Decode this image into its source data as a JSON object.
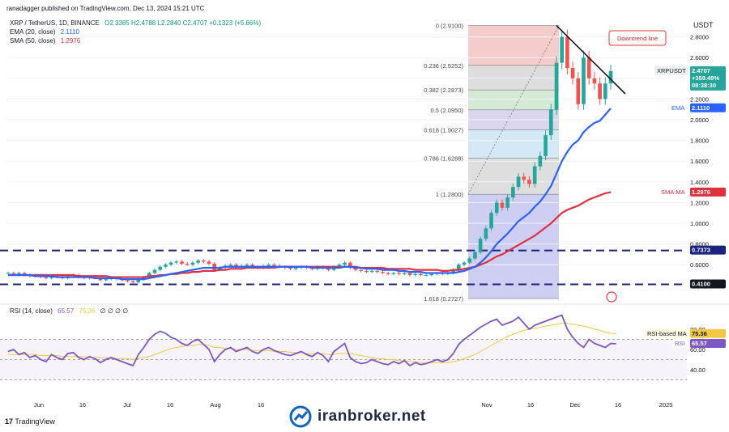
{
  "header": {
    "published": "ranadagger published on TradingView.com, Dec 13, 2024 15:21 UTC",
    "currency": "USDT"
  },
  "legend": {
    "symbol": "XRP / TetherUS, 1D, BINANCE",
    "ohlc": "O2.3385 H2.4788 L2.2840 C2.4707 +0.1323 (+5.66%)",
    "ema_label": "EMA (20, close)",
    "ema_value": "2.1110",
    "sma_label": "SMA (50, close)",
    "sma_value": "1.2976",
    "rsi_label": "RSI (14, close)",
    "rsi_value": "65.57",
    "rsi_ma_value": "75.36",
    "rsi_placeholders": "∅ ∅ ∅ ∅"
  },
  "price_badges": {
    "symbol": "XRPUSDT",
    "last": "2.4707",
    "change": "+359.49%",
    "countdown": "08:38:30",
    "ema_tag": "EMA",
    "ema": "2.1110",
    "sma_tag": "SMA:MA",
    "sma": "1.2976",
    "support_high": "0.7373",
    "support_low": "0.4100",
    "rsi_ma_tag": "RSI-based MA",
    "rsi_ma": "75.36",
    "rsi_tag": "RSI",
    "rsi": "65.57"
  },
  "annotation": {
    "trendline": "Downtrend line"
  },
  "watermark": "iranbroker.net",
  "footer_logo": "TradingView",
  "colors": {
    "up": "#26a69a",
    "down": "#ef5350",
    "ema": "#2962ff",
    "sma": "#e03040",
    "rsi": "#7e57c2",
    "rsi_ma": "#f2c744",
    "support": "#1a237e"
  },
  "chart_data": {
    "type": "candlestick",
    "title": "XRP / TetherUS, 1D, BINANCE",
    "x_ticks": [
      "Jun",
      "16",
      "Jul",
      "16",
      "Aug",
      "16",
      "Nov",
      "16",
      "Dec",
      "16",
      "2025"
    ],
    "y_ticks": [
      "2.8000",
      "2.6000",
      "2.4000",
      "2.2000",
      "2.0000",
      "1.8000",
      "1.6000",
      "1.4000",
      "1.2000",
      "1.0000",
      "0.8000",
      "0.6000"
    ],
    "y_tick_values": [
      2.8,
      2.6,
      2.4,
      2.2,
      2.0,
      1.8,
      1.6,
      1.4,
      1.2,
      1.0,
      0.8,
      0.6
    ],
    "price_range": [
      0.25,
      3.0
    ],
    "fibonacci": [
      {
        "label": "0 (2.9100)",
        "value": 2.91
      },
      {
        "label": "0.236 (2.5252)",
        "value": 2.5252
      },
      {
        "label": "0.382 (2.2873)",
        "value": 2.2873
      },
      {
        "label": "0.5 (2.0950)",
        "value": 2.095
      },
      {
        "label": "0.618 (1.9027)",
        "value": 1.9027
      },
      {
        "label": "0.786 (1.6288)",
        "value": 1.6288
      },
      {
        "label": "1 (1.2800)",
        "value": 1.28
      },
      {
        "label": "1.618 (0.2727)",
        "value": 0.2727
      }
    ],
    "support_lines": [
      0.7373,
      0.41
    ],
    "closes": [
      0.52,
      0.51,
      0.52,
      0.5,
      0.49,
      0.5,
      0.48,
      0.47,
      0.49,
      0.48,
      0.47,
      0.49,
      0.5,
      0.48,
      0.47,
      0.48,
      0.47,
      0.45,
      0.46,
      0.47,
      0.46,
      0.45,
      0.44,
      0.43,
      0.46,
      0.48,
      0.52,
      0.55,
      0.58,
      0.6,
      0.62,
      0.63,
      0.61,
      0.6,
      0.62,
      0.64,
      0.63,
      0.61,
      0.55,
      0.57,
      0.59,
      0.6,
      0.58,
      0.59,
      0.6,
      0.58,
      0.57,
      0.59,
      0.6,
      0.59,
      0.58,
      0.57,
      0.56,
      0.57,
      0.58,
      0.57,
      0.56,
      0.58,
      0.57,
      0.55,
      0.58,
      0.6,
      0.62,
      0.57,
      0.55,
      0.54,
      0.53,
      0.54,
      0.53,
      0.52,
      0.51,
      0.52,
      0.51,
      0.52,
      0.5,
      0.51,
      0.5,
      0.5,
      0.51,
      0.52,
      0.51,
      0.52,
      0.55,
      0.6,
      0.62,
      0.66,
      0.72,
      0.85,
      0.95,
      1.1,
      1.2,
      1.15,
      1.25,
      1.35,
      1.45,
      1.42,
      1.38,
      1.55,
      1.65,
      1.85,
      2.1,
      2.55,
      2.8,
      2.5,
      2.4,
      2.15,
      2.6,
      2.4,
      2.35,
      2.2,
      2.35,
      2.47
    ],
    "ema20": [
      0.5,
      0.5,
      0.5,
      0.5,
      0.5,
      0.49,
      0.49,
      0.49,
      0.49,
      0.48,
      0.48,
      0.48,
      0.48,
      0.48,
      0.48,
      0.48,
      0.47,
      0.47,
      0.47,
      0.47,
      0.47,
      0.46,
      0.46,
      0.46,
      0.46,
      0.46,
      0.47,
      0.48,
      0.49,
      0.5,
      0.51,
      0.52,
      0.53,
      0.54,
      0.55,
      0.56,
      0.57,
      0.57,
      0.57,
      0.57,
      0.58,
      0.58,
      0.58,
      0.58,
      0.58,
      0.58,
      0.58,
      0.58,
      0.58,
      0.58,
      0.58,
      0.58,
      0.58,
      0.58,
      0.58,
      0.58,
      0.57,
      0.57,
      0.57,
      0.57,
      0.57,
      0.57,
      0.58,
      0.58,
      0.57,
      0.57,
      0.56,
      0.56,
      0.56,
      0.55,
      0.55,
      0.55,
      0.54,
      0.54,
      0.53,
      0.53,
      0.53,
      0.52,
      0.52,
      0.52,
      0.52,
      0.52,
      0.52,
      0.53,
      0.54,
      0.56,
      0.58,
      0.62,
      0.67,
      0.73,
      0.8,
      0.85,
      0.9,
      0.96,
      1.02,
      1.06,
      1.1,
      1.16,
      1.21,
      1.28,
      1.36,
      1.48,
      1.6,
      1.69,
      1.76,
      1.8,
      1.88,
      1.93,
      1.97,
      1.99,
      2.05,
      2.11
    ],
    "sma50": [
      0.5,
      0.5,
      0.5,
      0.5,
      0.5,
      0.5,
      0.5,
      0.5,
      0.5,
      0.5,
      0.5,
      0.5,
      0.5,
      0.49,
      0.49,
      0.49,
      0.49,
      0.49,
      0.49,
      0.48,
      0.48,
      0.48,
      0.48,
      0.48,
      0.48,
      0.48,
      0.49,
      0.49,
      0.5,
      0.5,
      0.51,
      0.51,
      0.52,
      0.52,
      0.53,
      0.53,
      0.54,
      0.54,
      0.54,
      0.55,
      0.55,
      0.56,
      0.56,
      0.56,
      0.57,
      0.57,
      0.57,
      0.57,
      0.57,
      0.57,
      0.58,
      0.58,
      0.58,
      0.58,
      0.58,
      0.58,
      0.58,
      0.58,
      0.58,
      0.58,
      0.58,
      0.58,
      0.58,
      0.58,
      0.58,
      0.57,
      0.57,
      0.57,
      0.57,
      0.57,
      0.56,
      0.56,
      0.56,
      0.56,
      0.56,
      0.55,
      0.55,
      0.55,
      0.55,
      0.55,
      0.54,
      0.54,
      0.55,
      0.55,
      0.56,
      0.57,
      0.58,
      0.6,
      0.62,
      0.65,
      0.68,
      0.7,
      0.73,
      0.76,
      0.79,
      0.82,
      0.85,
      0.88,
      0.92,
      0.96,
      1.0,
      1.05,
      1.1,
      1.13,
      1.15,
      1.17,
      1.2,
      1.23,
      1.25,
      1.27,
      1.29,
      1.3
    ],
    "rsi": [
      58,
      60,
      55,
      57,
      52,
      54,
      50,
      48,
      55,
      52,
      50,
      56,
      57,
      52,
      50,
      53,
      51,
      47,
      50,
      52,
      50,
      48,
      46,
      44,
      55,
      62,
      70,
      75,
      78,
      76,
      72,
      70,
      66,
      64,
      68,
      70,
      65,
      60,
      48,
      55,
      60,
      62,
      58,
      60,
      62,
      58,
      56,
      60,
      62,
      59,
      57,
      55,
      54,
      56,
      58,
      55,
      53,
      57,
      54,
      48,
      58,
      62,
      66,
      52,
      48,
      46,
      47,
      50,
      48,
      46,
      45,
      48,
      46,
      49,
      44,
      47,
      45,
      46,
      48,
      50,
      48,
      50,
      56,
      65,
      70,
      74,
      78,
      82,
      85,
      88,
      90,
      84,
      86,
      88,
      92,
      86,
      80,
      84,
      86,
      88,
      90,
      92,
      94,
      80,
      72,
      66,
      62,
      70,
      66,
      64,
      62,
      66,
      65.57
    ],
    "rsi_ma": [
      55,
      55,
      55,
      55,
      55,
      55,
      54,
      54,
      54,
      54,
      53,
      53,
      53,
      53,
      53,
      52,
      52,
      52,
      52,
      51,
      51,
      51,
      51,
      50,
      51,
      52,
      53,
      55,
      57,
      59,
      61,
      62,
      63,
      64,
      64,
      65,
      65,
      64,
      62,
      62,
      61,
      61,
      60,
      60,
      60,
      59,
      59,
      59,
      59,
      58,
      58,
      58,
      57,
      57,
      57,
      56,
      56,
      56,
      56,
      55,
      55,
      56,
      56,
      56,
      55,
      54,
      53,
      52,
      51,
      51,
      50,
      50,
      49,
      49,
      48,
      48,
      47,
      47,
      47,
      47,
      47,
      47,
      48,
      49,
      51,
      53,
      55,
      58,
      61,
      64,
      67,
      70,
      73,
      75,
      77,
      79,
      80,
      81,
      82,
      83,
      84,
      85,
      86,
      86,
      85,
      84,
      83,
      82,
      80,
      79,
      77,
      76,
      75.36
    ],
    "rsi_ticks": [
      80.0,
      60.0,
      40.0
    ],
    "rsi_range": [
      20,
      100
    ]
  }
}
